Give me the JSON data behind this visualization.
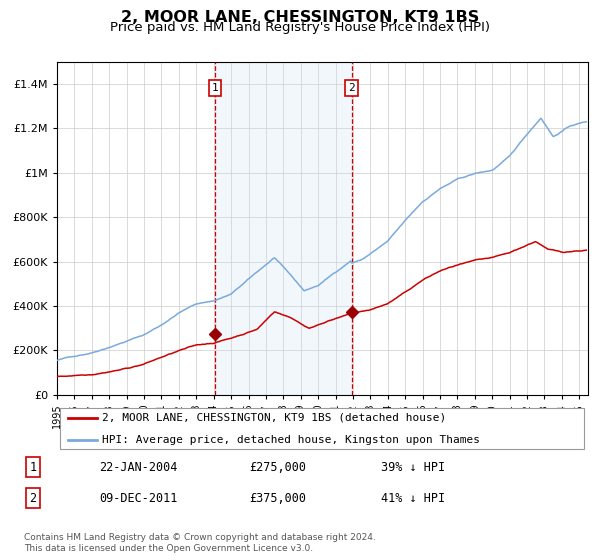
{
  "title": "2, MOOR LANE, CHESSINGTON, KT9 1BS",
  "subtitle": "Price paid vs. HM Land Registry's House Price Index (HPI)",
  "title_fontsize": 11.5,
  "subtitle_fontsize": 9.5,
  "legend_line1": "2, MOOR LANE, CHESSINGTON, KT9 1BS (detached house)",
  "legend_line2": "HPI: Average price, detached house, Kingston upon Thames",
  "annotation1_date": "22-JAN-2004",
  "annotation1_price": "£275,000",
  "annotation1_hpi": "39% ↓ HPI",
  "annotation2_date": "09-DEC-2011",
  "annotation2_price": "£375,000",
  "annotation2_hpi": "41% ↓ HPI",
  "footer": "Contains HM Land Registry data © Crown copyright and database right 2024.\nThis data is licensed under the Open Government Licence v3.0.",
  "hpi_color": "#7aaadd",
  "price_color": "#cc0000",
  "marker_color": "#990000",
  "vline_color": "#cc0000",
  "shade_color": "#cce0f5",
  "grid_color": "#cccccc",
  "bg_color": "#ffffff",
  "ylim": [
    0,
    1500000
  ],
  "yticks": [
    0,
    200000,
    400000,
    600000,
    800000,
    1000000,
    1200000,
    1400000
  ],
  "xlim_start": 1995.0,
  "xlim_end": 2025.5,
  "vline1_x": 2004.06,
  "vline2_x": 2011.92,
  "marker1_x": 2004.06,
  "marker1_y": 275000,
  "marker2_x": 2011.92,
  "marker2_y": 375000
}
